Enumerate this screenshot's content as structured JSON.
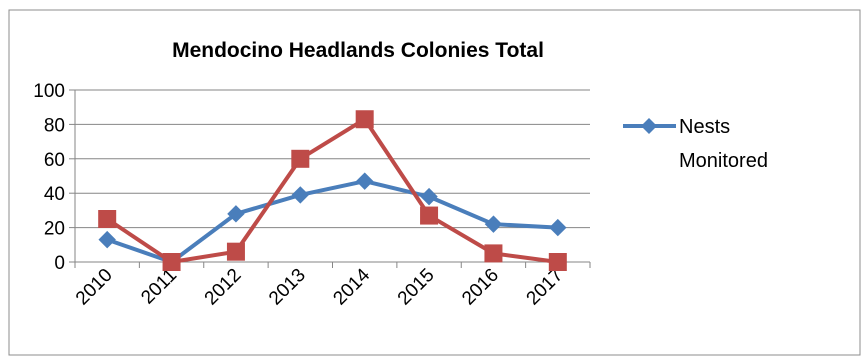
{
  "chart_data": {
    "type": "line",
    "title": "Mendocino Headlands Colonies Total",
    "xlabel": "",
    "ylabel": "",
    "categories": [
      "2010",
      "2011",
      "2012",
      "2013",
      "2014",
      "2015",
      "2016",
      "2017"
    ],
    "ylim": [
      0,
      100
    ],
    "yticks": [
      0,
      20,
      40,
      60,
      80,
      100
    ],
    "grid": true,
    "legend": "right",
    "series": [
      {
        "name": "Nests Monitored",
        "legend_lines": [
          "Nests",
          "Monitored"
        ],
        "color": "#4a7ebb",
        "marker": "diamond",
        "values": [
          13,
          0,
          28,
          39,
          47,
          38,
          22,
          20
        ]
      },
      {
        "name": "",
        "color": "#be4b48",
        "marker": "square",
        "values": [
          25,
          0,
          6,
          60,
          83,
          27,
          5,
          0
        ]
      }
    ]
  }
}
